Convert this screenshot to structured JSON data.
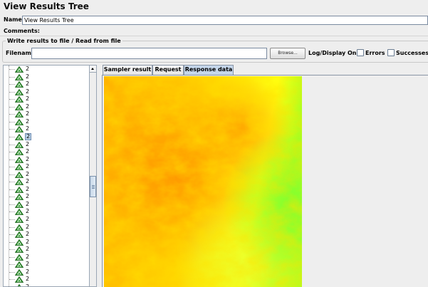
{
  "window": {
    "title": "View Results Tree"
  },
  "name_field": {
    "label": "Name:",
    "value": "View Results Tree"
  },
  "comments": {
    "label": "Comments:"
  },
  "file_group": {
    "legend": "Write results to file / Read from file",
    "filename_label": "Filename",
    "filename_value": "",
    "browse_label": "Browse...",
    "log_display_label": "Log/Display Only:",
    "errors_label": "Errors",
    "successes_label": "Successes"
  },
  "tree": {
    "items": [
      "2",
      "2",
      "2",
      "2",
      "2",
      "2",
      "2",
      "2",
      "2",
      "2",
      "2",
      "2",
      "2",
      "2",
      "2",
      "2",
      "2",
      "2",
      "2",
      "2",
      "2",
      "2",
      "2",
      "2",
      "2",
      "2",
      "2",
      "2",
      "2",
      "2"
    ],
    "selected_index": 9,
    "item_icon": "success-triangle-icon"
  },
  "tabs": [
    {
      "label": "Sampler result",
      "active": false
    },
    {
      "label": "Request",
      "active": false
    },
    {
      "label": "Response data",
      "active": true
    }
  ],
  "response": {
    "image": "terrain-heatmap-image",
    "colors": [
      "#ff9a00",
      "#ffd000",
      "#ffff00",
      "#9cff1a"
    ]
  }
}
